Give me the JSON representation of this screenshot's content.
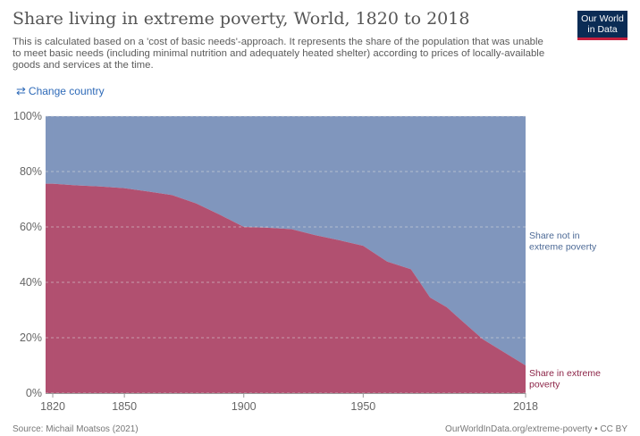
{
  "header": {
    "title": "Share living in extreme poverty, World, 1820 to 2018",
    "subtitle": "This is calculated based on a 'cost of basic needs'-approach. It represents the share of the population that was unable to meet basic needs (including minimal nutrition and adequately heated shelter) according to prices of locally-available goods and services at the time."
  },
  "logo": {
    "line1": "Our World",
    "line2": "in Data",
    "bg_color": "#0b2c55",
    "accent_color": "#c5203e"
  },
  "controls": {
    "change_country_label": "Change country",
    "change_country_icon": "swap-arrows-icon"
  },
  "footer": {
    "source": "Source: Michail Moatsos (2021)",
    "url": "OurWorldInData.org/extreme-poverty • CC BY"
  },
  "chart_data": {
    "type": "area",
    "stacked": true,
    "x": [
      1820,
      1830,
      1840,
      1850,
      1860,
      1870,
      1880,
      1890,
      1900,
      1910,
      1920,
      1930,
      1940,
      1950,
      1960,
      1970,
      1978,
      1985,
      1992,
      2000,
      2018
    ],
    "series": [
      {
        "name": "Share in extreme poverty",
        "label_lines": [
          "Share in extreme",
          "poverty"
        ],
        "color": "#b15070",
        "label_color": "#8c2447",
        "values": [
          75.6,
          75.0,
          74.6,
          74.0,
          72.8,
          71.5,
          68.5,
          64.4,
          60.0,
          59.7,
          59.2,
          57.0,
          55.2,
          53.2,
          47.5,
          44.7,
          34.5,
          31.0,
          25.6,
          19.5,
          10.0
        ]
      },
      {
        "name": "Share not in extreme poverty",
        "label_lines": [
          "Share not in",
          "extreme poverty"
        ],
        "color": "#8096bd",
        "label_color": "#4d6a96",
        "values": [
          24.4,
          25.0,
          25.4,
          26.0,
          27.2,
          28.5,
          31.5,
          35.6,
          40.0,
          40.3,
          40.8,
          43.0,
          44.8,
          46.8,
          52.5,
          55.3,
          65.5,
          69.0,
          74.4,
          80.5,
          90.0
        ]
      }
    ],
    "xlim": [
      1817,
      2018
    ],
    "ylim": [
      0,
      100
    ],
    "x_ticks": [
      {
        "value": 1820,
        "label": "1820"
      },
      {
        "value": 1850,
        "label": "1850"
      },
      {
        "value": 1900,
        "label": "1900"
      },
      {
        "value": 1950,
        "label": "1950"
      },
      {
        "value": 2018,
        "label": "2018"
      }
    ],
    "y_ticks": [
      {
        "value": 0,
        "label": "0%"
      },
      {
        "value": 20,
        "label": "20%"
      },
      {
        "value": 40,
        "label": "40%"
      },
      {
        "value": 60,
        "label": "60%"
      },
      {
        "value": 80,
        "label": "80%"
      },
      {
        "value": 100,
        "label": "100%"
      }
    ],
    "grid": true
  }
}
